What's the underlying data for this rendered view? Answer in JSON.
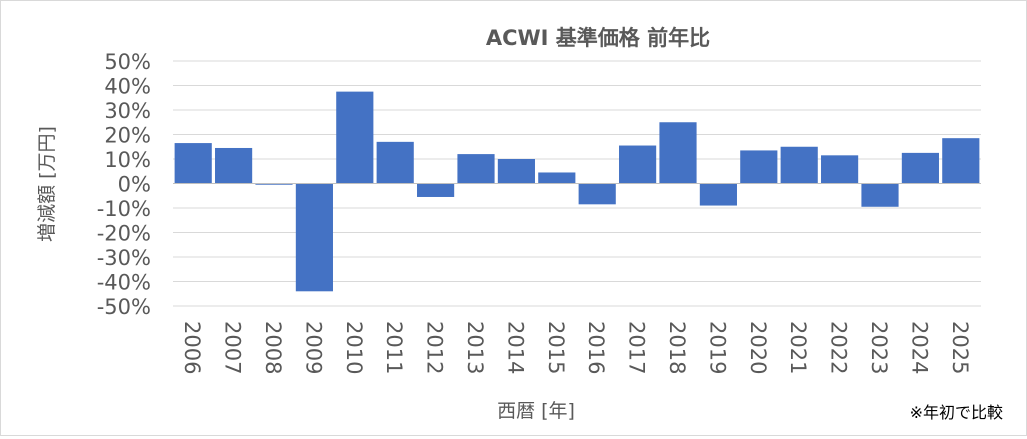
{
  "chart_data": {
    "type": "bar",
    "title": "ACWI 基準価格 前年比",
    "xlabel": "西暦 [年]",
    "ylabel": "増減額 [万円]",
    "note": "※年初で比較",
    "categories": [
      "2006",
      "2007",
      "2008",
      "2009",
      "2010",
      "2011",
      "2012",
      "2013",
      "2014",
      "2015",
      "2016",
      "2017",
      "2018",
      "2019",
      "2020",
      "2021",
      "2022",
      "2023",
      "2024",
      "2025"
    ],
    "values": [
      16.5,
      14.5,
      -0.5,
      -44,
      37.5,
      17,
      -5.5,
      12,
      10,
      4.5,
      -8.5,
      15.5,
      25,
      -9,
      13.5,
      15,
      11.5,
      -9.5,
      12.5,
      18.5
    ],
    "ylim": [
      -50,
      50
    ],
    "yticks": [
      50,
      40,
      30,
      20,
      10,
      0,
      -10,
      -20,
      -30,
      -40,
      -50
    ],
    "ytick_labels": [
      "50%",
      "40%",
      "30%",
      "20%",
      "10%",
      "0%",
      "-10%",
      "-20%",
      "-30%",
      "-40%",
      "-50%"
    ],
    "grid": true,
    "bar_color": "#4472c4"
  }
}
